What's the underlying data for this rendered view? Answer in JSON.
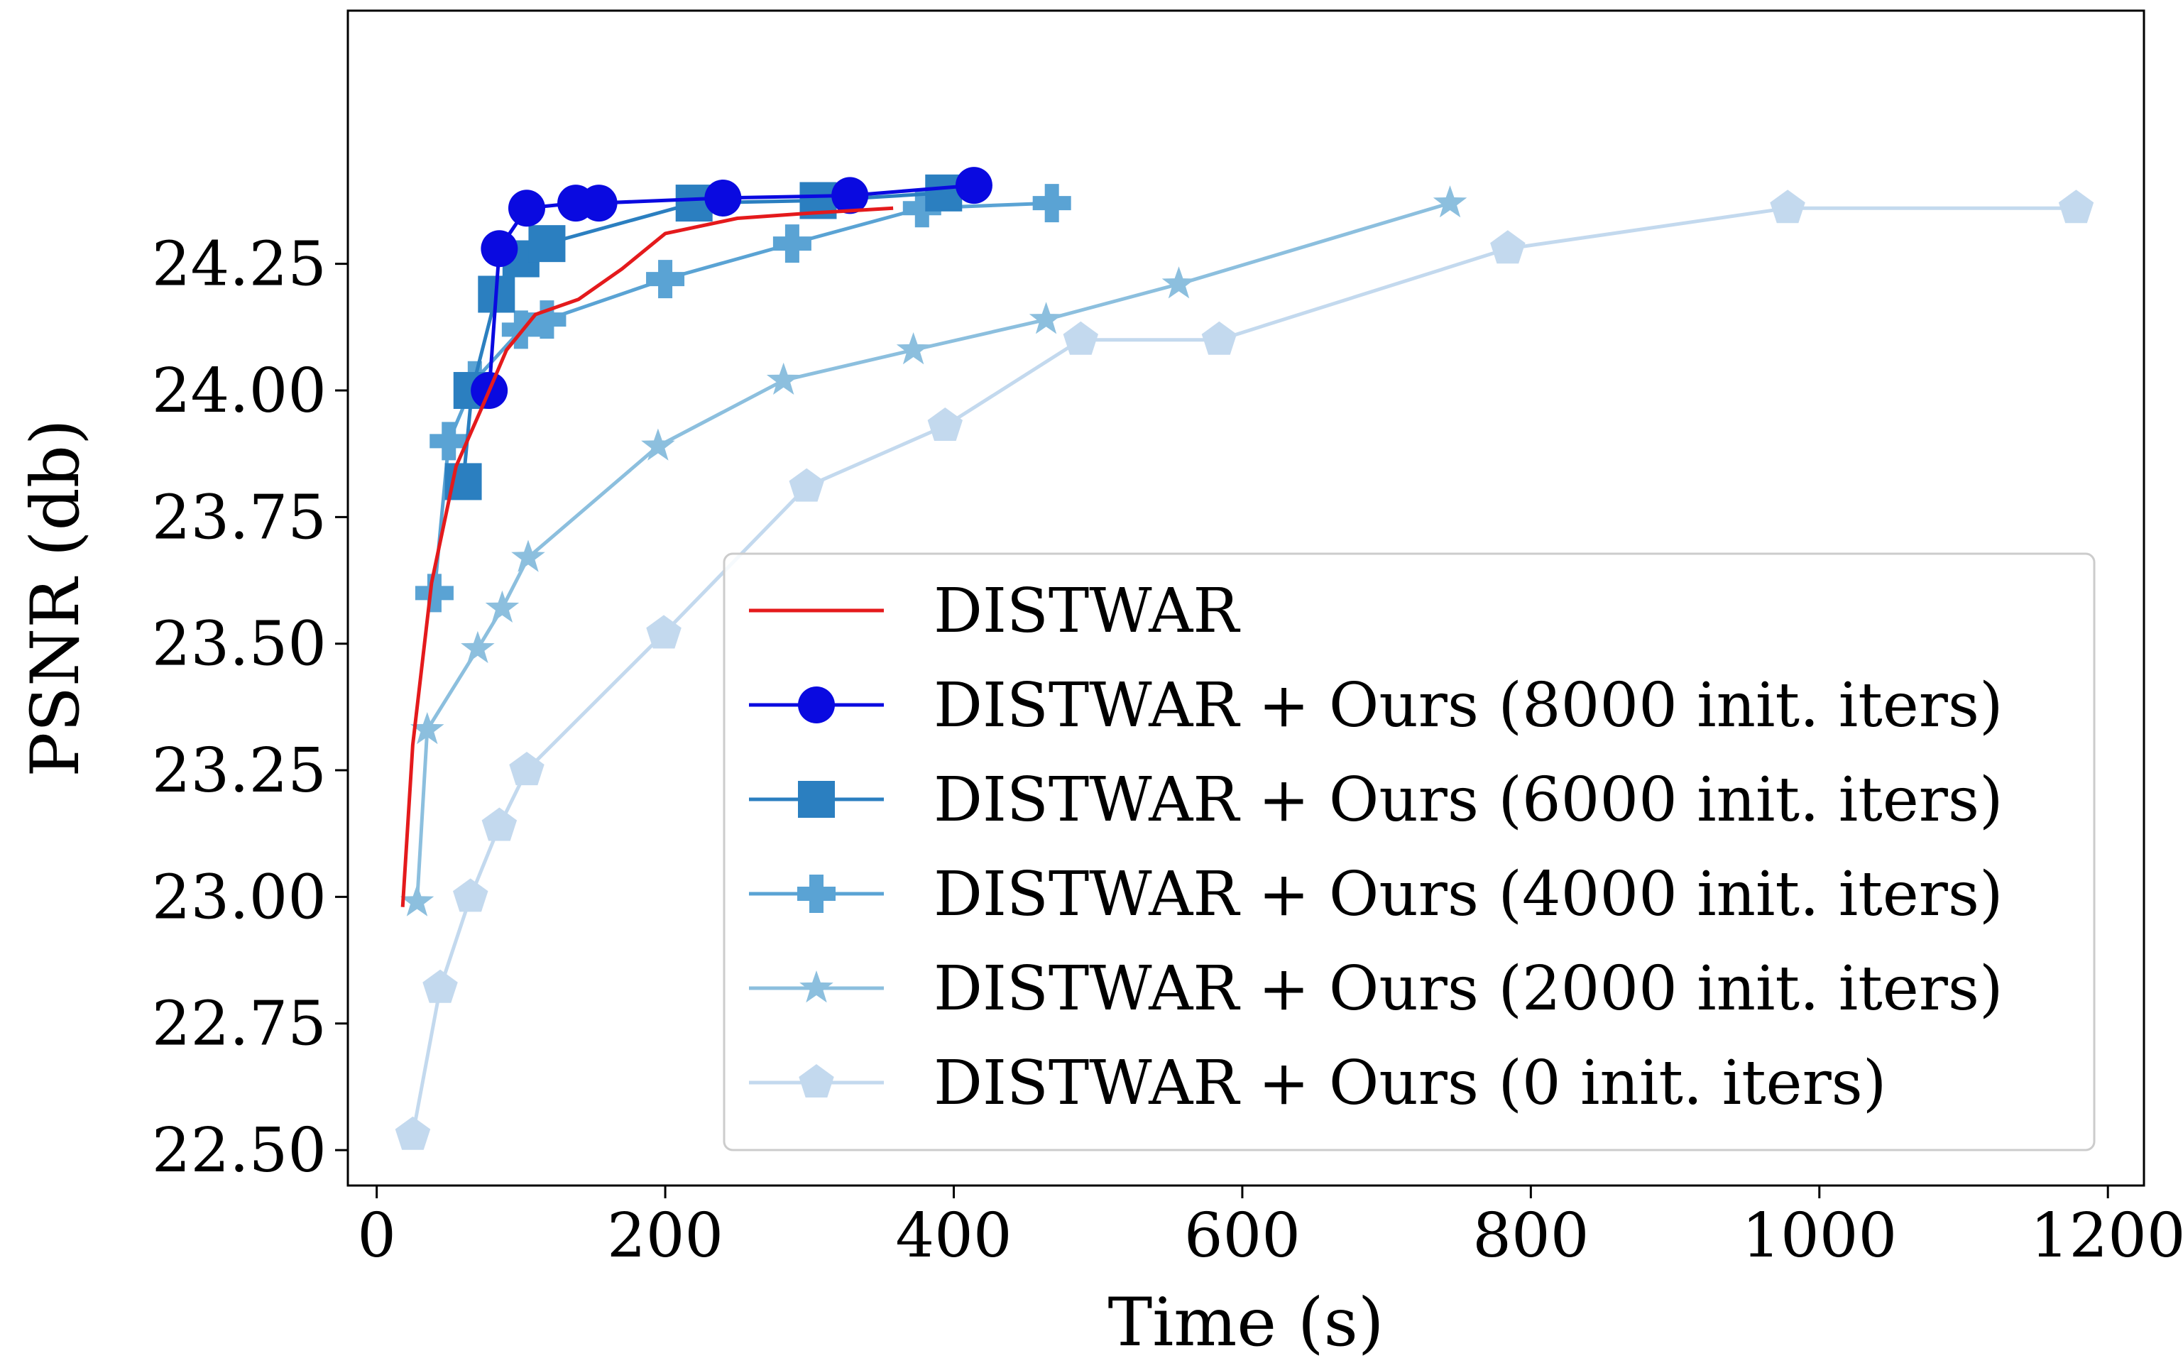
{
  "chart_data": {
    "type": "line",
    "title": "",
    "xlabel": "Time (s)",
    "ylabel": "PSNR (db)",
    "xlim": [
      -20,
      1225
    ],
    "ylim": [
      22.43,
      24.75
    ],
    "xticks": [
      0,
      200,
      400,
      600,
      800,
      1000,
      1200
    ],
    "xtick_labels": [
      "0",
      "200",
      "400",
      "600",
      "800",
      "1000",
      "1200"
    ],
    "yticks": [
      22.5,
      22.75,
      23.0,
      23.25,
      23.5,
      23.75,
      24.0,
      24.25
    ],
    "ytick_labels": [
      "22.50",
      "22.75",
      "23.00",
      "23.25",
      "23.50",
      "23.75",
      "24.00",
      "24.25"
    ],
    "grid": false,
    "legend_position": "lower-right",
    "series": [
      {
        "name": "DISTWAR",
        "color": "#e41a1c",
        "marker": "none",
        "x": [
          18,
          25,
          38,
          55,
          75,
          90,
          110,
          140,
          170,
          200,
          250,
          300,
          358
        ],
        "y": [
          22.98,
          23.3,
          23.62,
          23.85,
          23.98,
          24.08,
          24.15,
          24.18,
          24.24,
          24.31,
          24.34,
          24.35,
          24.36
        ]
      },
      {
        "name": "DISTWAR + Ours (8000 init. iters)",
        "color": "#0a0ae0",
        "marker": "circle",
        "x": [
          78,
          85,
          104,
          138,
          154,
          240,
          328,
          414
        ],
        "y": [
          24.0,
          24.28,
          24.36,
          24.37,
          24.37,
          24.38,
          24.385,
          24.405
        ]
      },
      {
        "name": "DISTWAR + Ours (6000 init. iters)",
        "color": "#2b7fc0",
        "marker": "square",
        "x": [
          60,
          66,
          83,
          100,
          118,
          220,
          306,
          393
        ],
        "y": [
          23.82,
          24.0,
          24.19,
          24.26,
          24.29,
          24.37,
          24.375,
          24.39
        ]
      },
      {
        "name": "DISTWAR + Ours (4000 init. iters)",
        "color": "#5aa3d4",
        "marker": "plus",
        "x": [
          40,
          50,
          68,
          100,
          118,
          200,
          288,
          378,
          468
        ],
        "y": [
          23.6,
          23.9,
          24.02,
          24.12,
          24.14,
          24.22,
          24.29,
          24.36,
          24.37
        ]
      },
      {
        "name": "DISTWAR + Ours (2000 init. iters)",
        "color": "#8cbfde",
        "marker": "star",
        "x": [
          28,
          35,
          70,
          87,
          105,
          195,
          282,
          372,
          464,
          556,
          744
        ],
        "y": [
          22.99,
          23.33,
          23.49,
          23.57,
          23.67,
          23.89,
          24.02,
          24.08,
          24.14,
          24.21,
          24.37
        ]
      },
      {
        "name": "DISTWAR + Ours (0 init. iters)",
        "color": "#c3d9ee",
        "marker": "pentagon",
        "x": [
          25,
          44,
          65,
          85,
          104,
          199,
          298,
          394,
          488,
          584,
          784,
          978,
          1178
        ],
        "y": [
          22.53,
          22.82,
          23.0,
          23.14,
          23.25,
          23.52,
          23.81,
          23.93,
          24.1,
          24.1,
          24.28,
          24.36,
          24.36
        ]
      }
    ]
  }
}
